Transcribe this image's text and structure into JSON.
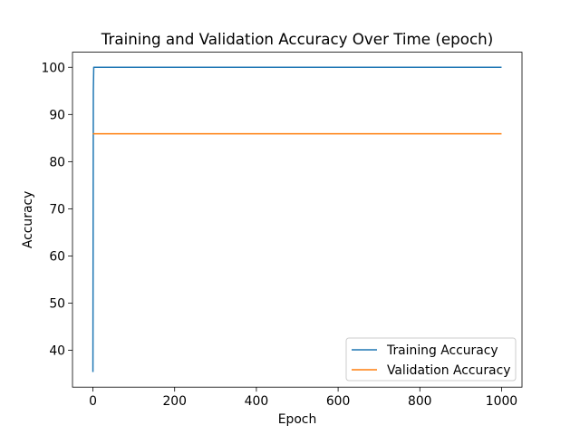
{
  "chart_data": {
    "type": "line",
    "title": "Training and Validation Accuracy Over Time (epoch)",
    "xlabel": "Epoch",
    "ylabel": "Accuracy",
    "xlim": [
      -50,
      1050
    ],
    "ylim": [
      32.2,
      103.2
    ],
    "xticks": [
      0,
      200,
      400,
      600,
      800,
      1000
    ],
    "yticks": [
      40,
      50,
      60,
      70,
      80,
      90,
      100
    ],
    "grid": false,
    "legend_position": "lower-right",
    "series": [
      {
        "name": "Training Accuracy",
        "color": "#1f77b4",
        "x": [
          0,
          1,
          2,
          3,
          1000
        ],
        "y": [
          35.4,
          95,
          100,
          100,
          100
        ]
      },
      {
        "name": "Validation Accuracy",
        "color": "#ff7f0e",
        "x": [
          0,
          1000
        ],
        "y": [
          85.9,
          85.9
        ]
      }
    ]
  }
}
